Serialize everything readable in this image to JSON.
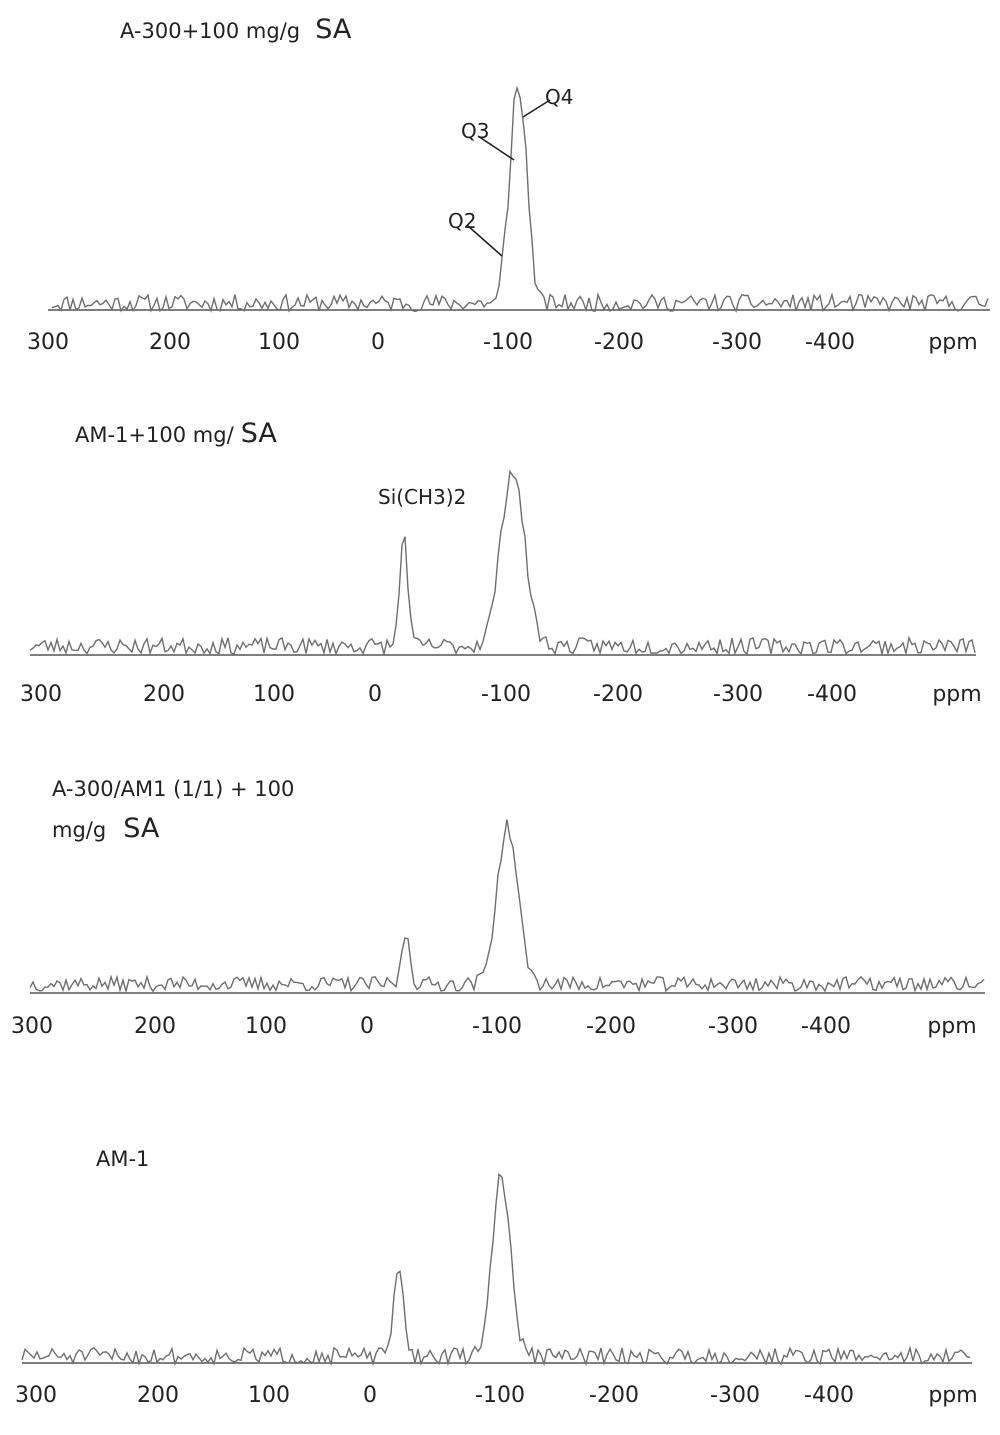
{
  "chart_data": [
    {
      "type": "line",
      "title": "A-300+100 mg/g",
      "title_suffix": "SA",
      "x_unit_label": "ppm",
      "x_ticks": [
        "300",
        "200",
        "100",
        "0",
        "-100",
        "-200",
        "-300",
        "-400"
      ],
      "peaks": [
        {
          "x": -97,
          "height": 0.22,
          "width": 2.5,
          "label": "Q2"
        },
        {
          "x": -104,
          "height": 0.66,
          "width": 3.5,
          "label": "Q3"
        },
        {
          "x": -111,
          "height": 0.93,
          "width": 5,
          "label": "Q4"
        }
      ],
      "noise_amplitude": 0.045,
      "seed": 11
    },
    {
      "type": "line",
      "title": "AM-1+100 mg/",
      "title_suffix": "SA",
      "x_unit_label": "ppm",
      "x_ticks": [
        "300",
        "200",
        "100",
        "0",
        "-100",
        "-200",
        "-300",
        "-400"
      ],
      "peaks": [
        {
          "x": -22,
          "height": 0.62,
          "width": 3,
          "label": "Si(CH3)2"
        },
        {
          "x": -105,
          "height": 0.97,
          "width": 9
        }
      ],
      "noise_amplitude": 0.045,
      "seed": 23
    },
    {
      "type": "line",
      "title": "A-300/AM1 (1/1) + 100",
      "title_line2": "mg/g",
      "title_suffix": "SA",
      "x_unit_label": "ppm",
      "x_ticks": [
        "300",
        "200",
        "100",
        "0",
        "-100",
        "-200",
        "-300",
        "-400"
      ],
      "peaks": [
        {
          "x": -30,
          "height": 0.32,
          "width": 3
        },
        {
          "x": -108,
          "height": 0.97,
          "width": 8
        }
      ],
      "noise_amplitude": 0.045,
      "seed": 37
    },
    {
      "type": "line",
      "title": "AM-1",
      "x_unit_label": "ppm",
      "x_ticks": [
        "300",
        "200",
        "100",
        "0",
        "-100",
        "-200",
        "-300",
        "-400"
      ],
      "peaks": [
        {
          "x": -22,
          "height": 0.45,
          "width": 4
        },
        {
          "x": -101,
          "height": 1.0,
          "width": 7
        }
      ],
      "noise_amplitude": 0.045,
      "seed": 51
    }
  ]
}
